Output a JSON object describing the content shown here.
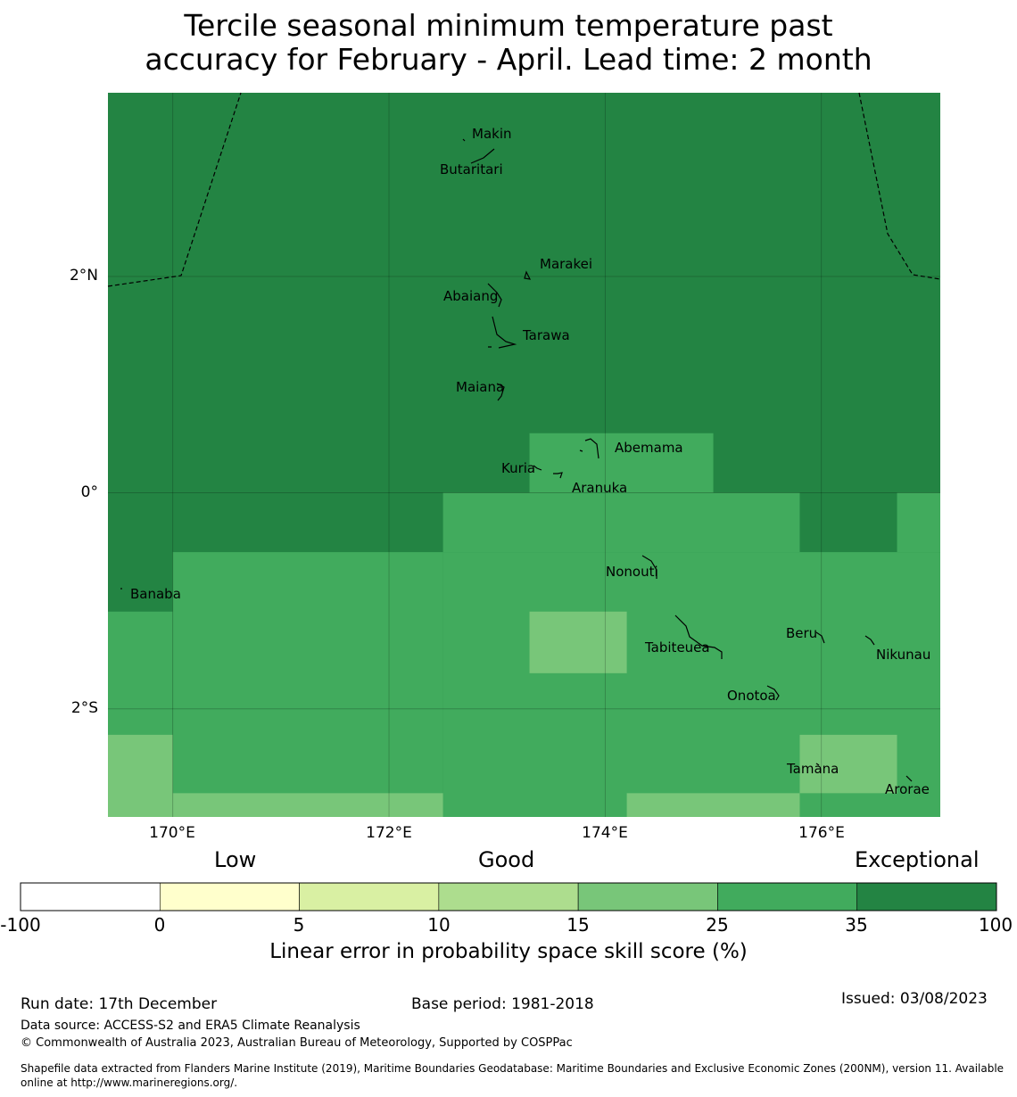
{
  "title": {
    "line1": "Tercile seasonal minimum temperature past",
    "line2": "accuracy for February - April. Lead time: 2 month"
  },
  "map": {
    "lon_range": [
      169.4,
      177.1
    ],
    "lat_range": [
      -3.0,
      3.7
    ],
    "lat_ticks": [
      {
        "label": "2°N",
        "value": 2
      },
      {
        "label": "0°",
        "value": 0
      },
      {
        "label": "2°S",
        "value": -2
      }
    ],
    "lon_ticks": [
      {
        "label": "170°E",
        "value": 170
      },
      {
        "label": "172°E",
        "value": 172
      },
      {
        "label": "174°E",
        "value": 174
      },
      {
        "label": "176°E",
        "value": 176
      }
    ],
    "skill_cells": [
      {
        "lon": [
          169.4,
          177.1
        ],
        "lat": [
          -3.0,
          3.7
        ],
        "category": "35-100"
      },
      {
        "lon": [
          172.5,
          175.8
        ],
        "lat": [
          -0.55,
          0.0
        ],
        "category": "25-35"
      },
      {
        "lon": [
          173.3,
          175.0
        ],
        "lat": [
          0.0,
          0.55
        ],
        "category": "25-35"
      },
      {
        "lon": [
          170.0,
          172.5
        ],
        "lat": [
          -3.0,
          -0.55
        ],
        "category": "25-35"
      },
      {
        "lon": [
          169.4,
          170.0
        ],
        "lat": [
          -3.0,
          -1.1
        ],
        "category": "25-35"
      },
      {
        "lon": [
          172.5,
          177.1
        ],
        "lat": [
          -3.0,
          -0.55
        ],
        "category": "25-35"
      },
      {
        "lon": [
          176.7,
          177.1
        ],
        "lat": [
          -0.55,
          0.0
        ],
        "category": "25-35"
      },
      {
        "lon": [
          173.3,
          174.2
        ],
        "lat": [
          -1.67,
          -1.1
        ],
        "category": "15-25"
      },
      {
        "lon": [
          169.4,
          170.0
        ],
        "lat": [
          -3.0,
          -2.24
        ],
        "category": "15-25"
      },
      {
        "lon": [
          170.0,
          172.5
        ],
        "lat": [
          -3.0,
          -2.78
        ],
        "category": "15-25"
      },
      {
        "lon": [
          174.2,
          175.8
        ],
        "lat": [
          -3.0,
          -2.78
        ],
        "category": "15-25"
      },
      {
        "lon": [
          175.8,
          176.7
        ],
        "lat": [
          -2.78,
          -2.24
        ],
        "category": "15-25"
      }
    ],
    "islands": [
      {
        "name": "Makin",
        "lon": 172.98,
        "lat": 3.35
      },
      {
        "name": "Butaritari",
        "lon": 172.78,
        "lat": 3.07
      },
      {
        "name": "Marakei",
        "lon": 173.28,
        "lat": 2.0
      },
      {
        "name": "Abaiang",
        "lon": 172.95,
        "lat": 1.82
      },
      {
        "name": "Tarawa",
        "lon": 173.05,
        "lat": 1.42
      },
      {
        "name": "Maiana",
        "lon": 173.0,
        "lat": 0.95
      },
      {
        "name": "Abemama",
        "lon": 173.85,
        "lat": 0.42
      },
      {
        "name": "Kuria",
        "lon": 173.4,
        "lat": 0.22
      },
      {
        "name": "Aranuka",
        "lon": 173.6,
        "lat": 0.17
      },
      {
        "name": "Banaba",
        "lon": 169.53,
        "lat": -0.87
      },
      {
        "name": "Nonouti",
        "lon": 174.4,
        "lat": -0.63
      },
      {
        "name": "Tabiteuea",
        "lon": 174.8,
        "lat": -1.35
      },
      {
        "name": "Beru",
        "lon": 175.98,
        "lat": -1.33
      },
      {
        "name": "Nikunau",
        "lon": 176.45,
        "lat": -1.37
      },
      {
        "name": "Onotoa",
        "lon": 175.55,
        "lat": -1.8
      },
      {
        "name": "Tamana",
        "lon": 175.98,
        "lat": -2.5
      },
      {
        "name": "Arorae",
        "lon": 176.82,
        "lat": -2.65
      }
    ]
  },
  "colorbar": {
    "label_low": "Low",
    "label_good": "Good",
    "label_exceptional": "Exceptional",
    "title": "Linear error in probability space skill score (%)",
    "ticks": [
      "-100",
      "0",
      "5",
      "10",
      "15",
      "25",
      "35",
      "100"
    ],
    "colors": [
      "#ffffff",
      "#ffffcc",
      "#d9f0a3",
      "#addd8e",
      "#78c679",
      "#41ab5d",
      "#238443"
    ]
  },
  "footer": {
    "run_date": "Run date: 17th December",
    "base_period": "Base period: 1981-2018",
    "issued": "Issued: 03/08/2023",
    "data_source": "Data source: ACCESS-S2 and ERA5 Climate Reanalysis",
    "copyright": "© Commonwealth of Australia 2023, Australian Bureau of Meteorology, Supported by COSPPac",
    "shapefile_line1": "Shapefile data extracted from Flanders Marine Institute (2019), Maritime Boundaries Geodatabase: Maritime Boundaries and Exclusive Economic Zones (200NM), version 11. Available",
    "shapefile_line2": "online at http://www.marineregions.org/."
  }
}
